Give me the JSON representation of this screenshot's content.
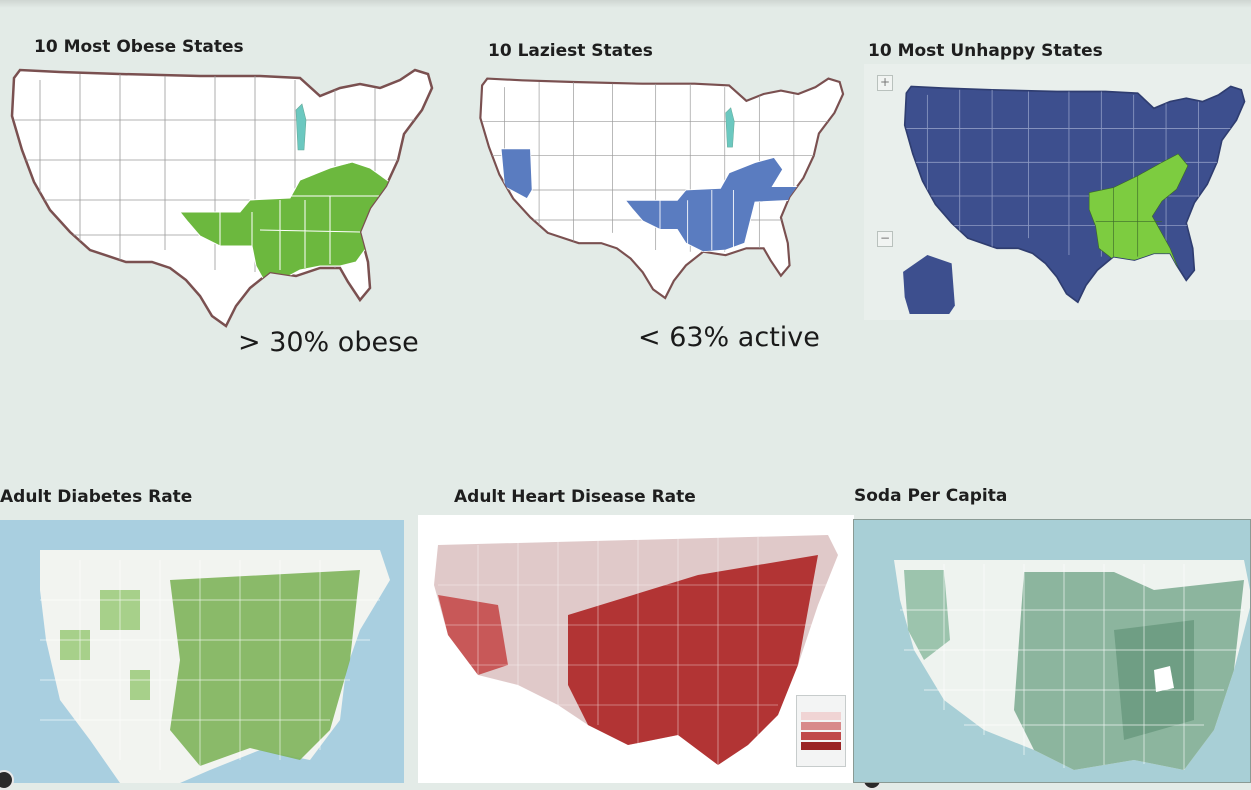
{
  "panels": {
    "obese": {
      "title": "10 Most Obese States",
      "caption": "> 30% obese",
      "highlight_color": "#6cb83e"
    },
    "lazy": {
      "title": "10 Laziest States",
      "caption": "< 63% active",
      "highlight_color": "#5a7cc0"
    },
    "unhappy": {
      "title": "10 Most Unhappy States",
      "base_color": "#3d4f8e",
      "highlight_color": "#7dcc40"
    },
    "diabetes": {
      "title": "Adult Diabetes Rate",
      "color": "#6a9c48"
    },
    "heart": {
      "title": "Adult Heart Disease Rate",
      "color": "#b23434"
    },
    "soda": {
      "title": "Soda Per Capita",
      "color": "#6f9e84"
    }
  },
  "icons": {
    "zoom_in": "+",
    "zoom_out": "−"
  }
}
